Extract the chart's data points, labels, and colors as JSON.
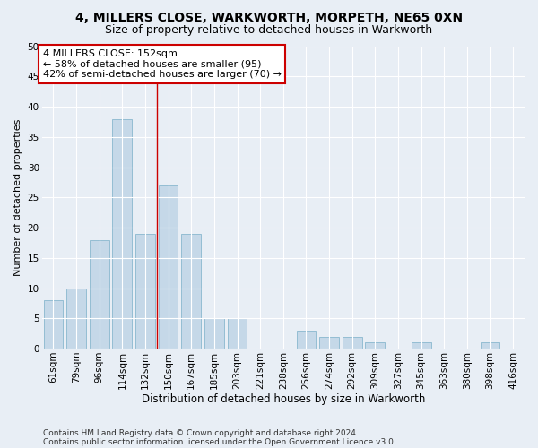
{
  "title1": "4, MILLERS CLOSE, WARKWORTH, MORPETH, NE65 0XN",
  "title2": "Size of property relative to detached houses in Warkworth",
  "xlabel": "Distribution of detached houses by size in Warkworth",
  "ylabel": "Number of detached properties",
  "categories": [
    "61sqm",
    "79sqm",
    "96sqm",
    "114sqm",
    "132sqm",
    "150sqm",
    "167sqm",
    "185sqm",
    "203sqm",
    "221sqm",
    "238sqm",
    "256sqm",
    "274sqm",
    "292sqm",
    "309sqm",
    "327sqm",
    "345sqm",
    "363sqm",
    "380sqm",
    "398sqm",
    "416sqm"
  ],
  "values": [
    8,
    10,
    18,
    38,
    19,
    27,
    19,
    5,
    5,
    0,
    0,
    3,
    2,
    2,
    1,
    0,
    1,
    0,
    0,
    1,
    0
  ],
  "bar_color": "#c5d8e8",
  "bar_edge_color": "#7aafc8",
  "vline_x": 4.5,
  "vline_color": "#cc0000",
  "annotation_text": "4 MILLERS CLOSE: 152sqm\n← 58% of detached houses are smaller (95)\n42% of semi-detached houses are larger (70) →",
  "annotation_box_color": "#ffffff",
  "annotation_box_edge_color": "#cc0000",
  "ylim": [
    0,
    50
  ],
  "yticks": [
    0,
    5,
    10,
    15,
    20,
    25,
    30,
    35,
    40,
    45,
    50
  ],
  "bg_color": "#e8eef5",
  "plot_bg_color": "#e8eef5",
  "footer1": "Contains HM Land Registry data © Crown copyright and database right 2024.",
  "footer2": "Contains public sector information licensed under the Open Government Licence v3.0.",
  "title1_fontsize": 10,
  "title2_fontsize": 9,
  "xlabel_fontsize": 8.5,
  "ylabel_fontsize": 8,
  "tick_fontsize": 7.5,
  "annot_fontsize": 8,
  "footer_fontsize": 6.5
}
